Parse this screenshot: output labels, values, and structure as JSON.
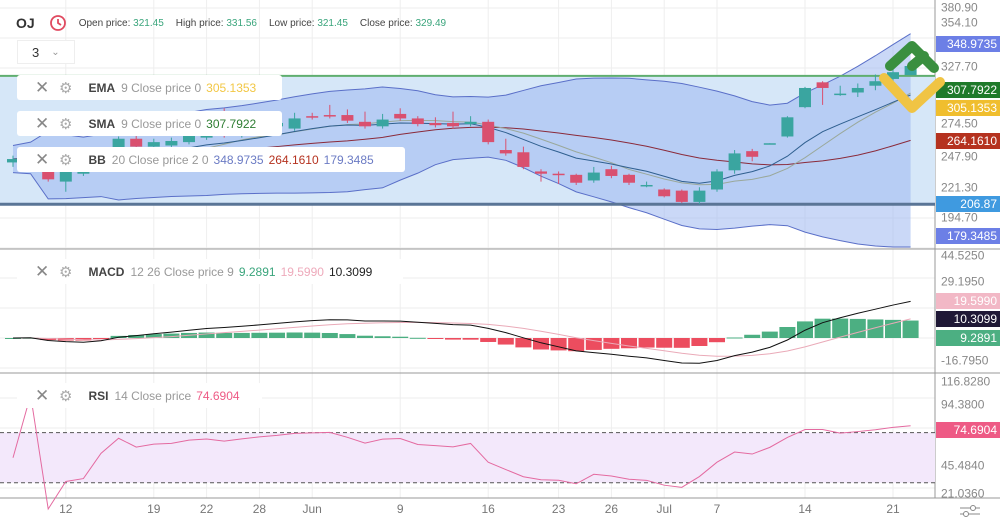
{
  "header": {
    "symbol": "OJ",
    "icon": "clock-refresh-icon",
    "open_label": "Open price:",
    "open": "321.45",
    "high_label": "High price:",
    "high": "331.56",
    "low_label": "Low price:",
    "low": "321.45",
    "close_label": "Close price:",
    "close": "329.49"
  },
  "interval": {
    "value": "3"
  },
  "legends": {
    "ema": {
      "name": "EMA",
      "params": "9 Close price 0",
      "value": "305.1353",
      "color": "#f2c744"
    },
    "sma": {
      "name": "SMA",
      "params": "9 Close price 0",
      "value": "307.7922",
      "color": "#2e7d32"
    },
    "bb": {
      "name": "BB",
      "params": "20 Close price 2 0",
      "upper": "348.9735",
      "middle": "264.1610",
      "lower": "179.3485"
    },
    "macd": {
      "name": "MACD",
      "params": "12 26 Close price 9",
      "hist": "9.2891",
      "signal": "19.5990",
      "macd": "10.3099"
    },
    "rsi": {
      "name": "RSI",
      "params": "14 Close price",
      "value": "74.6904"
    }
  },
  "axes": {
    "price": [
      "380.90",
      "354.10",
      "327.70",
      "274.50",
      "247.90",
      "221.30",
      "194.70"
    ],
    "macd": [
      "44.5250",
      "29.1950",
      "-16.7950"
    ],
    "rsi": [
      "116.8280",
      "94.3800",
      "45.4840",
      "21.0360"
    ]
  },
  "tags": {
    "bb_upper": {
      "text": "348.9735",
      "color": "#6c7fe6"
    },
    "sma": {
      "text": "307.7922",
      "color": "#1f7a2a"
    },
    "ema": {
      "text": "305.1353",
      "color": "#f0be2e"
    },
    "bb_middle": {
      "text": "264.1610",
      "color": "#b5321f"
    },
    "line": {
      "text": "206.87",
      "color": "#3f9ae0"
    },
    "bb_lower": {
      "text": "179.3485",
      "color": "#6c7fe6"
    },
    "signal": {
      "text": "19.5990",
      "color": "#f2b8c6"
    },
    "macd": {
      "text": "10.3099",
      "color": "#1f1836"
    },
    "hist": {
      "text": "9.2891",
      "color": "#4caf82"
    },
    "rsi": {
      "text": "74.6904",
      "color": "#ee5a85"
    }
  },
  "colors": {
    "up": "#3aa5a0",
    "down": "#d9506f",
    "band": "#9fb8f0",
    "grid": "#eeeeee"
  },
  "chart_data": {
    "type": "candlestick",
    "ohlc": [
      [
        244,
        250,
        240,
        247
      ],
      [
        246,
        252,
        244,
        249
      ],
      [
        238,
        240,
        227,
        229
      ],
      [
        227,
        237,
        218,
        236
      ],
      [
        234,
        240,
        232,
        237
      ],
      [
        240,
        252,
        238,
        250
      ],
      [
        255,
        267,
        253,
        265
      ],
      [
        265,
        268,
        256,
        258
      ],
      [
        258,
        265,
        256,
        262
      ],
      [
        259,
        266,
        257,
        263
      ],
      [
        262,
        272,
        260,
        268
      ],
      [
        266,
        274,
        264,
        270
      ],
      [
        272,
        292,
        266,
        268
      ],
      [
        268,
        276,
        266,
        272
      ],
      [
        270,
        280,
        268,
        276
      ],
      [
        276,
        284,
        274,
        279
      ],
      [
        274,
        288,
        272,
        283
      ],
      [
        285,
        288,
        282,
        284
      ],
      [
        286,
        295,
        283,
        285
      ],
      [
        286,
        291,
        279,
        281
      ],
      [
        280,
        289,
        274,
        276
      ],
      [
        276,
        287,
        274,
        282
      ],
      [
        287,
        292,
        281,
        283
      ],
      [
        283,
        285,
        276,
        278
      ],
      [
        279,
        284,
        275,
        277
      ],
      [
        279,
        289,
        274,
        276
      ],
      [
        278,
        285,
        276,
        280
      ],
      [
        280,
        282,
        260,
        262
      ],
      [
        255,
        265,
        250,
        252
      ],
      [
        253,
        258,
        238,
        240
      ],
      [
        236,
        238,
        227,
        234
      ],
      [
        234,
        236,
        225,
        233
      ],
      [
        233,
        234,
        224,
        226
      ],
      [
        228,
        240,
        226,
        235
      ],
      [
        238,
        241,
        230,
        232
      ],
      [
        233,
        234,
        224,
        226
      ],
      [
        224,
        227,
        222,
        224
      ],
      [
        220,
        221,
        213,
        214
      ],
      [
        219,
        220,
        208,
        209
      ],
      [
        209,
        222,
        207,
        219
      ],
      [
        220,
        238,
        218,
        236
      ],
      [
        237,
        255,
        234,
        252
      ],
      [
        254,
        256,
        245,
        249
      ],
      [
        260,
        261,
        260,
        261
      ],
      [
        267,
        285,
        266,
        284
      ],
      [
        293,
        311,
        292,
        310
      ],
      [
        315,
        316,
        295,
        310
      ],
      [
        304,
        312,
        303,
        305
      ],
      [
        306,
        314,
        302,
        310
      ],
      [
        312,
        322,
        308,
        316
      ],
      [
        318,
        330,
        316,
        324
      ],
      [
        321.45,
        331.56,
        321.45,
        329.49
      ]
    ],
    "x_ticks": [
      {
        "label": "12",
        "index": 3
      },
      {
        "label": "19",
        "index": 8
      },
      {
        "label": "22",
        "index": 11
      },
      {
        "label": "28",
        "index": 14
      },
      {
        "label": "Jun",
        "index": 17
      },
      {
        "label": "9",
        "index": 22
      },
      {
        "label": "16",
        "index": 27
      },
      {
        "label": "23",
        "index": 31
      },
      {
        "label": "26",
        "index": 34
      },
      {
        "label": "Jul",
        "index": 37
      },
      {
        "label": "7",
        "index": 40
      },
      {
        "label": "14",
        "index": 45
      },
      {
        "label": "21",
        "index": 50
      }
    ],
    "horizontal_lines": [
      320.7,
      206.87
    ],
    "rsi_levels": [
      70,
      30
    ],
    "price_range": [
      175,
      385
    ]
  }
}
